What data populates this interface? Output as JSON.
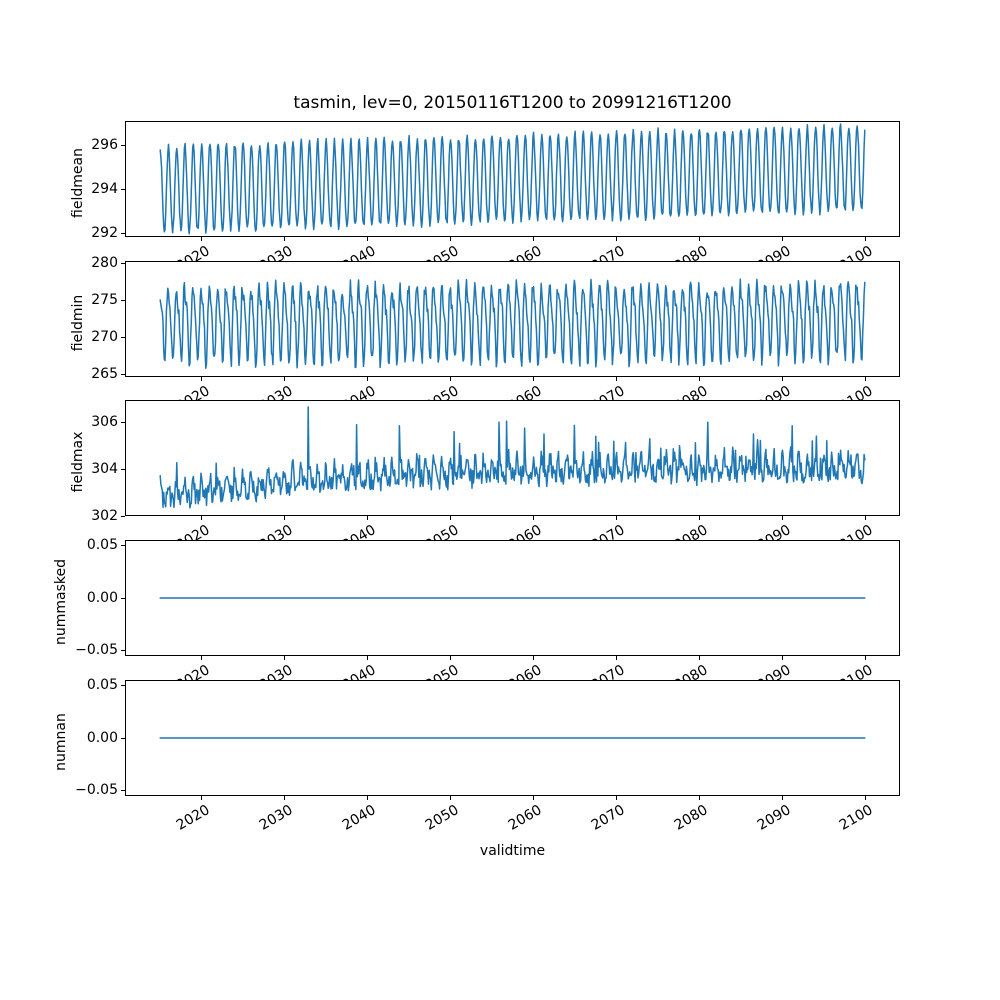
{
  "figure": {
    "background_color": "#ffffff",
    "axis_color": "#000000",
    "text_color": "#000000"
  },
  "chart_data": {
    "type": "line",
    "title": "tasmin, lev=0, 20150116T1200 to 20991216T1200",
    "xlabel": "validtime",
    "legend": "none",
    "grid": false,
    "line_color": "#1f77b4",
    "x_start": 2015.042,
    "x_end": 2099.958,
    "xlim": [
      2010.8,
      2104.2
    ],
    "xticks": [
      2020,
      2030,
      2040,
      2050,
      2060,
      2070,
      2080,
      2090,
      2100
    ],
    "xtick_labels": [
      "2020",
      "2030",
      "2040",
      "2050",
      "2060",
      "2070",
      "2080",
      "2090",
      "2100"
    ],
    "points_per_year": 12,
    "panels": [
      {
        "name": "fieldmean",
        "ylabel": "fieldmean",
        "ylim": [
          291.84,
          297.1
        ],
        "yticks": [
          292,
          294,
          296
        ],
        "ytick_labels": [
          "292",
          "294",
          "296"
        ],
        "description": "Monthly field-mean tasmin: regular annual cycle, peaks rising from about 295.9 to 296.9, troughs rising from about 292.0 to 292.9 over 2015-2099",
        "gen": {
          "kind": "seasonal",
          "seed": 7,
          "base_start": 293.95,
          "base_end": 294.92,
          "amp_start": 1.93,
          "amp_end": 1.93,
          "h2": 0.1,
          "h2_phase": 0.9,
          "noise": 0.16,
          "clip_min": 291.9,
          "clip_max": 296.99
        }
      },
      {
        "name": "fieldmin",
        "ylabel": "fieldmin",
        "ylim": [
          264.7,
          280.4
        ],
        "yticks": [
          265,
          270,
          275,
          280
        ],
        "ytick_labels": [
          "265",
          "270",
          "275",
          "280"
        ],
        "description": "Monthly field-minimum tasmin: noisy annual cycle between about 265.5 and 280, no obvious trend",
        "gen": {
          "kind": "seasonal",
          "seed": 19,
          "base_start": 272.2,
          "base_end": 272.6,
          "amp_start": 4.6,
          "amp_end": 4.6,
          "h2": 1.35,
          "h2_phase": 2.2,
          "noise": 1.0,
          "clip_min": 265.35,
          "clip_max": 279.9
        }
      },
      {
        "name": "fieldmax",
        "ylabel": "fieldmax",
        "ylim": [
          302.0,
          306.95
        ],
        "yticks": [
          302,
          304,
          306
        ],
        "ytick_labels": [
          "302",
          "304",
          "306"
        ],
        "description": "Monthly field-maximum tasmin: noisy series rising from about 302.9 to 304.0 with isolated spikes up to about 306.7 (largest near 2033)",
        "gen": {
          "kind": "trend_noise",
          "seed": 41,
          "base_points": [
            [
              2015,
              302.9
            ],
            [
              2030,
              303.45
            ],
            [
              2045,
              303.8
            ],
            [
              2060,
              303.95
            ],
            [
              2100,
              304.05
            ]
          ],
          "seasonal_amp": 0.38,
          "h2": 0.18,
          "h2_phase": 0.5,
          "noise": 0.4,
          "spike_prob_start": 0.012,
          "spike_prob_end": 0.045,
          "spike_scale": 1.2,
          "clip_min": 302.15,
          "clip_max": 306.7,
          "spikes": [
            [
              2032.9,
              306.65
            ],
            [
              2038.7,
              305.9
            ],
            [
              2043.9,
              305.85
            ],
            [
              2050.5,
              305.6
            ],
            [
              2055.9,
              306.0
            ],
            [
              2056.8,
              306.05
            ],
            [
              2061.3,
              305.5
            ],
            [
              2067.5,
              305.4
            ],
            [
              2074.0,
              305.3
            ],
            [
              2081.0,
              306.0
            ],
            [
              2086.5,
              305.5
            ],
            [
              2091.2,
              305.85
            ]
          ]
        }
      },
      {
        "name": "nummasked",
        "ylabel": "nummasked",
        "ylim": [
          -0.055,
          0.055
        ],
        "yticks": [
          0.05,
          0.0,
          -0.05
        ],
        "ytick_labels": [
          "0.05",
          "0.00",
          "−0.05"
        ],
        "description": "Number of masked points: constant 0 for the whole period",
        "gen": {
          "kind": "constant",
          "value": 0
        }
      },
      {
        "name": "numnan",
        "ylabel": "numnan",
        "ylim": [
          -0.055,
          0.055
        ],
        "yticks": [
          0.05,
          0.0,
          -0.05
        ],
        "ytick_labels": [
          "0.05",
          "0.00",
          "−0.05"
        ],
        "description": "Number of NaN points: constant 0 for the whole period",
        "gen": {
          "kind": "constant",
          "value": 0
        }
      }
    ]
  }
}
